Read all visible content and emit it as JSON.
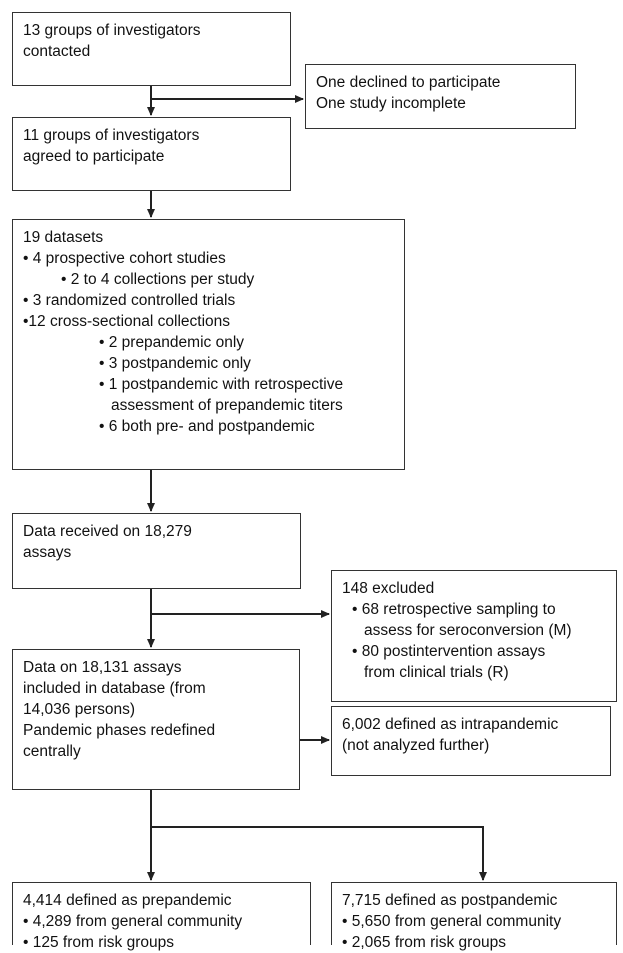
{
  "diagram": {
    "line_color": "#222222",
    "box_border_color": "#333333",
    "boxes": {
      "contacted": {
        "lines": [
          "13 groups of investigators",
          "contacted"
        ]
      },
      "declined": {
        "lines": [
          "One declined to participate",
          "One study incomplete"
        ]
      },
      "agreed": {
        "lines": [
          "11 groups of investigators",
          "agreed to participate"
        ]
      },
      "datasets": {
        "title": "19 datasets",
        "items": [
          "• 4 prospective cohort studies",
          "• 2 to 4 collections per study",
          "• 3 randomized controlled trials",
          "•12 cross-sectional collections",
          "• 2 prepandemic only",
          "• 3 postpandemic only",
          "• 1 postpandemic with retrospective",
          "assessment of prepandemic titers",
          "• 6 both pre- and postpandemic"
        ]
      },
      "received": {
        "lines": [
          "Data received on 18,279",
          "assays"
        ]
      },
      "excluded": {
        "title": "148 excluded",
        "items": [
          "• 68 retrospective sampling to",
          "assess for seroconversion (M)",
          "• 80 postintervention assays",
          "from clinical trials (R)"
        ]
      },
      "included": {
        "lines": [
          "Data on 18,131 assays",
          "included in database (from",
          "14,036 persons)",
          "Pandemic phases redefined",
          "centrally"
        ]
      },
      "intrapandemic": {
        "lines": [
          "6,002 defined as intrapandemic",
          "(not analyzed further)"
        ]
      },
      "prepandemic": {
        "title": "4,414 defined as prepandemic",
        "items": [
          "• 4,289 from general community",
          "• 125 from risk groups"
        ]
      },
      "postpandemic": {
        "title": "7,715 defined as postpandemic",
        "items": [
          "• 5,650 from general community",
          "• 2,065 from risk groups"
        ]
      }
    }
  }
}
